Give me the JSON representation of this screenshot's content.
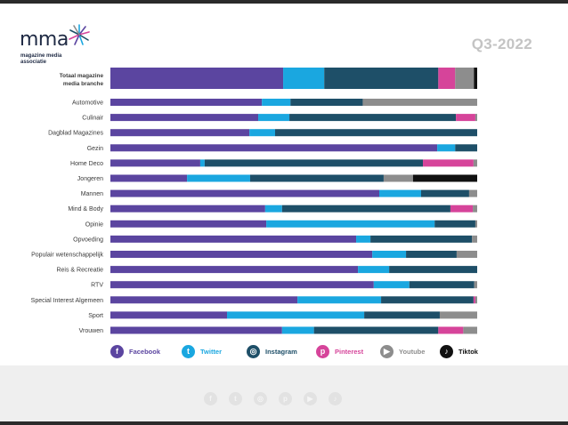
{
  "header": {
    "logo_text": "mma",
    "logo_subtitle": "magazine media\nassociatie",
    "period": "Q3-2022"
  },
  "colors": {
    "facebook": "#5b45a0",
    "twitter": "#1aa7e0",
    "instagram": "#1e4f68",
    "pinterest": "#d6449a",
    "youtube": "#8d8d8d",
    "tiktok": "#111111"
  },
  "chart_data": {
    "type": "bar",
    "orientation": "horizontal",
    "stacked": true,
    "normalized": true,
    "categories": [
      "Totaal magazine media branche",
      "Automotive",
      "Culinair",
      "Dagblad Magazines",
      "Gezin",
      "Home Deco",
      "Jongeren",
      "Mannen",
      "Mind & Body",
      "Opinie",
      "Opvoeding",
      "Populair wetenschappelijk",
      "Reis & Recreatie",
      "RTV",
      "Special Interest Algemeen",
      "Sport",
      "Vrouwen"
    ],
    "series": [
      {
        "name": "Facebook",
        "color": "#5b45a0",
        "values": [
          47.1,
          41.3,
          40.3,
          37.9,
          89.1,
          24.5,
          20.9,
          73.3,
          42.2,
          42.5,
          67.0,
          71.4,
          67.5,
          71.8,
          51.0,
          31.8,
          46.8
        ]
      },
      {
        "name": "Twitter",
        "color": "#1aa7e0",
        "values": [
          11.2,
          7.8,
          8.5,
          7.0,
          4.9,
          1.2,
          17.2,
          11.4,
          4.6,
          45.9,
          3.9,
          9.2,
          8.5,
          9.7,
          22.8,
          37.4,
          8.7
        ]
      },
      {
        "name": "Instagram",
        "color": "#1e4f68",
        "values": [
          31.1,
          19.7,
          45.4,
          55.1,
          6.0,
          59.5,
          36.4,
          13.1,
          45.9,
          11.1,
          27.7,
          13.8,
          24.0,
          17.7,
          25.2,
          20.6,
          33.9
        ]
      },
      {
        "name": "Pinterest",
        "color": "#d6449a",
        "values": [
          4.6,
          0,
          5.3,
          0,
          0,
          13.8,
          0,
          0,
          6.1,
          0,
          0,
          0,
          0,
          0,
          0.5,
          0,
          6.8
        ]
      },
      {
        "name": "Youtube",
        "color": "#8d8d8d",
        "values": [
          5.1,
          31.2,
          0.5,
          0,
          0,
          1.0,
          8.0,
          2.2,
          1.2,
          0.5,
          1.4,
          5.6,
          0,
          0.8,
          0.5,
          10.2,
          3.8
        ]
      },
      {
        "name": "Tiktok",
        "color": "#111111",
        "values": [
          0.9,
          0,
          0,
          0,
          0,
          0,
          17.5,
          0,
          0,
          0,
          0,
          0,
          0,
          0,
          0,
          0,
          0
        ]
      }
    ],
    "title": "",
    "xlabel": "",
    "ylabel": "",
    "xlim": [
      0,
      100
    ],
    "grid": false,
    "legend": "bottom"
  },
  "legend": {
    "items": [
      {
        "label": "Facebook",
        "glyph": "f",
        "color": "#5b45a0"
      },
      {
        "label": "Twitter",
        "glyph": "t",
        "color": "#1aa7e0"
      },
      {
        "label": "Instagram",
        "glyph": "◎",
        "color": "#1e4f68"
      },
      {
        "label": "Pinterest",
        "glyph": "p",
        "color": "#d6449a"
      },
      {
        "label": "Youtube",
        "glyph": "▶",
        "color": "#8d8d8d"
      },
      {
        "label": "Tiktok",
        "glyph": "♪",
        "color": "#111111"
      }
    ]
  },
  "footer": {
    "icons": [
      {
        "name": "facebook-icon",
        "glyph": "f"
      },
      {
        "name": "twitter-icon",
        "glyph": "t"
      },
      {
        "name": "instagram-icon",
        "glyph": "◎"
      },
      {
        "name": "pinterest-icon",
        "glyph": "p"
      },
      {
        "name": "youtube-icon",
        "glyph": "▶"
      },
      {
        "name": "tiktok-icon",
        "glyph": "♪"
      }
    ]
  }
}
